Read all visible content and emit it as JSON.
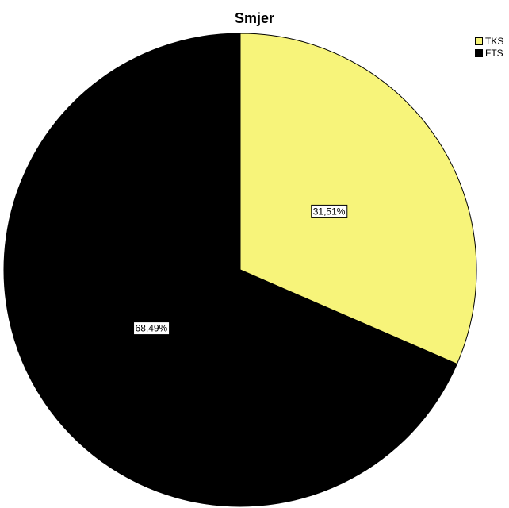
{
  "chart_data": {
    "type": "pie",
    "title": "Smjer",
    "categories": [
      "TKS",
      "FTS"
    ],
    "values": [
      31.51,
      68.49
    ],
    "labels": [
      "31,51%",
      "68,49%"
    ],
    "colors": [
      "#f7f47a",
      "#000000"
    ],
    "legend": {
      "placement": "top-right",
      "entries": [
        "TKS",
        "FTS"
      ]
    }
  }
}
